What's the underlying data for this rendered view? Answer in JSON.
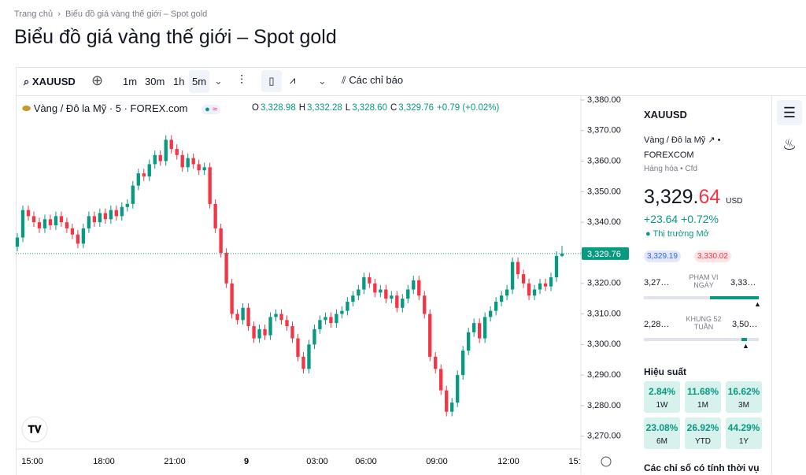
{
  "breadcrumb": {
    "home": "Trang chủ",
    "current": "Biểu đồ giá vàng thế giới – Spot gold"
  },
  "header": {
    "title": "Biểu đồ giá vàng thế giới – Spot gold"
  },
  "toolbar": {
    "symbol": "XAUUSD",
    "intervals": [
      "1m",
      "30m",
      "1h",
      "5m"
    ],
    "indicators": "Các chỉ báo"
  },
  "legend": {
    "name": "Vàng / Đô la Mỹ · 5 · FOREX.com",
    "ohlc": [
      {
        "label": "O",
        "value": "3,328.98"
      },
      {
        "label": "H",
        "value": "3,332.28"
      },
      {
        "label": "L",
        "value": "3,328.60"
      },
      {
        "label": "C",
        "value": "3,329.76"
      }
    ],
    "change": "+0.79 (+0.02%)"
  },
  "chart_data": {
    "type": "candlestick",
    "up_color": "#089981",
    "down_color": "#f23645",
    "ylim": [
      3265.8,
      3381.8
    ],
    "yticks": [
      {
        "value": 3270,
        "label": "3,270.00"
      },
      {
        "value": 3280,
        "label": "3,280.00"
      },
      {
        "value": 3290,
        "label": "3,290.00"
      },
      {
        "value": 3300,
        "label": "3,300.00"
      },
      {
        "value": 3310,
        "label": "3,310.00"
      },
      {
        "value": 3320,
        "label": "3,320.00"
      },
      {
        "value": 3330,
        "label": "3,330.00"
      },
      {
        "value": 3340,
        "label": "3,340.00"
      },
      {
        "value": 3350,
        "label": "3,350.00"
      },
      {
        "value": 3360,
        "label": "3,360.00"
      },
      {
        "value": 3370,
        "label": "3,370.00"
      },
      {
        "value": 3380,
        "label": "3,380.00"
      }
    ],
    "xtick_labels": [
      "15:00",
      "18:00",
      "21:00",
      "9",
      "03:00",
      "06:00",
      "09:00",
      "12:00",
      "15:"
    ],
    "last_price": {
      "value": 3329.76,
      "label": "3,329.76"
    },
    "open": [
      3332,
      3335,
      3344,
      3342,
      3340,
      3338,
      3341,
      3339,
      3342,
      3340,
      3338,
      3336,
      3333,
      3338,
      3342,
      3340,
      3343,
      3341,
      3344,
      3342,
      3345,
      3346,
      3352,
      3356,
      3355,
      3359,
      3362,
      3360,
      3367,
      3364,
      3362,
      3358,
      3361,
      3359,
      3357,
      3358,
      3346,
      3338,
      3330,
      3320,
      3310,
      3308,
      3312,
      3306,
      3302,
      3305,
      3303,
      3309,
      3310,
      3308,
      3306,
      3302,
      3296,
      3292,
      3300,
      3305,
      3308,
      3309,
      3307,
      3310,
      3311,
      3314,
      3316,
      3318,
      3322,
      3320,
      3317,
      3318,
      3315,
      3316,
      3312,
      3315,
      3318,
      3321,
      3316,
      3310,
      3296,
      3292,
      3285,
      3278,
      3281,
      3290,
      3298,
      3304,
      3307,
      3302,
      3309,
      3311,
      3314,
      3316,
      3318,
      3327,
      3323,
      3320,
      3316,
      3318,
      3320,
      3319,
      3322,
      3328.98
    ],
    "high": [
      3336.5,
      3345.5,
      3345.5,
      3343.5,
      3341.5,
      3342.5,
      3342.5,
      3343.5,
      3343.5,
      3341.5,
      3339.5,
      3337.5,
      3339.5,
      3343.5,
      3343.5,
      3344.5,
      3344.5,
      3345.5,
      3345.5,
      3346.5,
      3347.5,
      3353.5,
      3357.5,
      3357.5,
      3360.5,
      3363.5,
      3363.5,
      3368.5,
      3368.5,
      3365.5,
      3363.5,
      3362.5,
      3362.5,
      3360.5,
      3359.5,
      3359.5,
      3347.5,
      3339.5,
      3331.5,
      3321.5,
      3311.5,
      3313.5,
      3313.5,
      3307.5,
      3306.5,
      3306.5,
      3310.5,
      3311.5,
      3311.5,
      3309.5,
      3307.5,
      3303.5,
      3297.5,
      3301.5,
      3306.5,
      3309.5,
      3310.5,
      3310.5,
      3311.5,
      3312.5,
      3315.5,
      3317.5,
      3319.5,
      3323.5,
      3323.5,
      3321.5,
      3319.5,
      3319.5,
      3317.5,
      3317.5,
      3316.5,
      3319.5,
      3322.5,
      3322.5,
      3317.5,
      3311.5,
      3297.5,
      3293.5,
      3286.5,
      3282.5,
      3291.5,
      3299.5,
      3305.5,
      3308.5,
      3308.5,
      3310.5,
      3312.5,
      3315.5,
      3317.5,
      3319.5,
      3328.5,
      3328.5,
      3324.5,
      3321.5,
      3319.5,
      3321.5,
      3321.5,
      3323.5,
      3330.5,
      3332.28
    ],
    "low": [
      3330.5,
      3333.5,
      3340.5,
      3338.5,
      3336.5,
      3336.5,
      3337.5,
      3337.5,
      3338.5,
      3336.5,
      3334.5,
      3331.5,
      3331.5,
      3336.5,
      3338.5,
      3338.5,
      3339.5,
      3339.5,
      3340.5,
      3340.5,
      3343.5,
      3344.5,
      3350.5,
      3353.5,
      3353.5,
      3357.5,
      3358.5,
      3358.5,
      3362.5,
      3360.5,
      3356.5,
      3356.5,
      3357.5,
      3355.5,
      3355.5,
      3344.5,
      3336.5,
      3328.5,
      3318.5,
      3308.5,
      3306.5,
      3306.5,
      3304.5,
      3300.5,
      3300.5,
      3301.5,
      3301.5,
      3307.5,
      3306.5,
      3304.5,
      3300.5,
      3294.5,
      3290.5,
      3290.5,
      3298.5,
      3303.5,
      3306.5,
      3305.5,
      3305.5,
      3308.5,
      3309.5,
      3312.5,
      3314.5,
      3316.5,
      3318.5,
      3315.5,
      3315.5,
      3313.5,
      3313.5,
      3310.5,
      3310.5,
      3313.5,
      3316.5,
      3314.5,
      3308.5,
      3294.5,
      3290.5,
      3283.5,
      3276.5,
      3276.5,
      3279.5,
      3288.5,
      3296.5,
      3302.5,
      3300.5,
      3300.5,
      3307.5,
      3309.5,
      3312.5,
      3314.5,
      3316.5,
      3321.5,
      3318.5,
      3314.5,
      3314.5,
      3316.5,
      3317.5,
      3317.5,
      3320.5,
      3328.6
    ],
    "close": [
      3335,
      3344,
      3342,
      3340,
      3338,
      3341,
      3339,
      3342,
      3340,
      3338,
      3336,
      3333,
      3338,
      3342,
      3340,
      3343,
      3341,
      3344,
      3342,
      3345,
      3346,
      3352,
      3356,
      3355,
      3359,
      3362,
      3360,
      3367,
      3364,
      3362,
      3358,
      3361,
      3359,
      3357,
      3358,
      3346,
      3338,
      3330,
      3320,
      3310,
      3308,
      3312,
      3306,
      3302,
      3305,
      3303,
      3309,
      3310,
      3308,
      3306,
      3302,
      3296,
      3292,
      3300,
      3305,
      3308,
      3309,
      3307,
      3310,
      3311,
      3314,
      3316,
      3318,
      3322,
      3320,
      3317,
      3318,
      3315,
      3316,
      3312,
      3315,
      3318,
      3321,
      3316,
      3310,
      3296,
      3292,
      3285,
      3278,
      3281,
      3290,
      3298,
      3304,
      3307,
      3302,
      3309,
      3311,
      3314,
      3316,
      3318,
      3327,
      3323,
      3320,
      3316,
      3318,
      3320,
      3319,
      3322,
      3328.98,
      3329.76
    ]
  },
  "sidebar": {
    "symbol": "XAUUSD",
    "name": "Vàng / Đô la Mỹ",
    "exchange": "FOREXCOM",
    "category": "Hàng hóa • Cfd",
    "price_main": "3,329.",
    "price_decimals": "64",
    "currency": "USD",
    "change": "+23.64",
    "change_pct": "+0.72%",
    "status": "Thị trường Mở",
    "bid": "3,329.19",
    "ask": "3,330.02",
    "day_range": {
      "low": "3,27…",
      "label": "PHẠM VI NGÀY",
      "high": "3,33…"
    },
    "week52_range": {
      "low": "2,28…",
      "label": "KHUNG 52 TUẦN",
      "high": "3,50…"
    },
    "performance_title": "Hiệu suất",
    "performance": [
      {
        "value": "2.84%",
        "period": "1W"
      },
      {
        "value": "11.68%",
        "period": "1M"
      },
      {
        "value": "16.62%",
        "period": "3M"
      },
      {
        "value": "23.08%",
        "period": "6M"
      },
      {
        "value": "26.92%",
        "period": "YTD"
      },
      {
        "value": "44.29%",
        "period": "1Y"
      }
    ],
    "footer": "Các chỉ số có tính thời vụ"
  }
}
